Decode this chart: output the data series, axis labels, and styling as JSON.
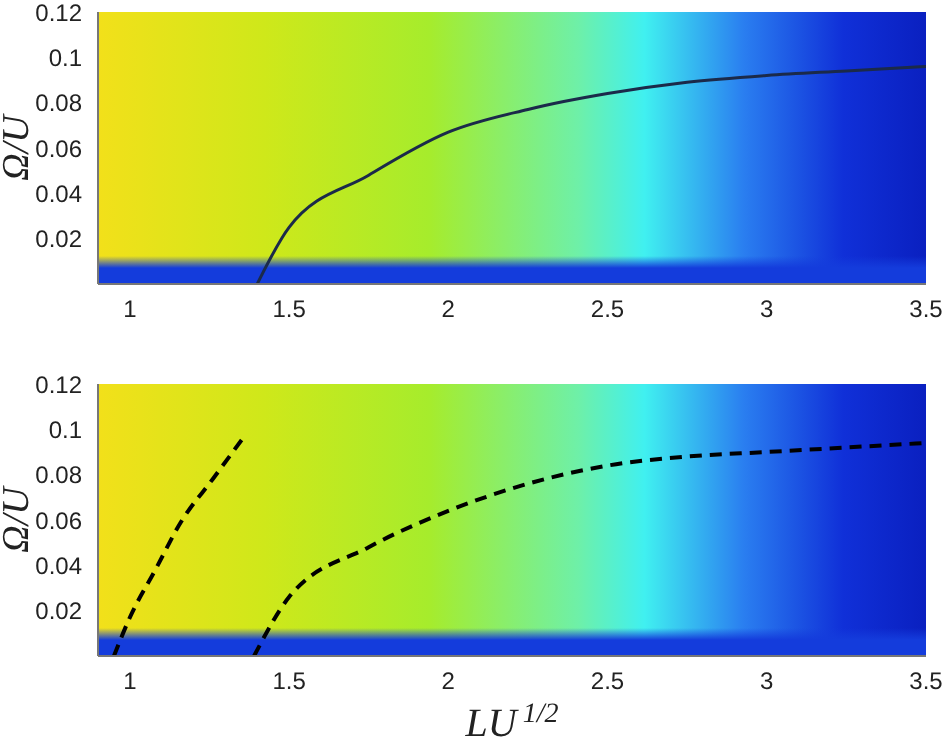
{
  "chart_data": [
    {
      "type": "line",
      "ylabel": "Ω/U",
      "xlim": [
        0.9,
        3.5
      ],
      "ylim": [
        0,
        0.12
      ],
      "xticks": [
        1,
        1.5,
        2,
        2.5,
        3,
        3.5
      ],
      "yticks": [
        0.02,
        0.04,
        0.06,
        0.08,
        0.1,
        0.12
      ],
      "marker": "none",
      "line_style": "solid",
      "series": [
        {
          "color": "#1b2a4a",
          "x": [
            1.4,
            1.5,
            1.75,
            2.0,
            2.25,
            2.5,
            2.75,
            3.0,
            3.25,
            3.5
          ],
          "values": [
            0,
            0.025,
            0.048,
            0.067,
            0.077,
            0.084,
            0.089,
            0.092,
            0.094,
            0.096
          ]
        }
      ]
    },
    {
      "type": "line",
      "ylabel": "Ω/U",
      "xlabel": "LU$^{1/2}$",
      "xlim": [
        0.9,
        3.5
      ],
      "ylim": [
        0,
        0.12
      ],
      "xticks": [
        1,
        1.5,
        2,
        2.5,
        3,
        3.5
      ],
      "yticks": [
        0.02,
        0.04,
        0.06,
        0.08,
        0.1,
        0.12
      ],
      "marker": "none",
      "line_style": "dashed",
      "series": [
        {
          "color": "#000000",
          "x": [
            0.95,
            1.0,
            1.08,
            1.16,
            1.26,
            1.36
          ],
          "values": [
            0,
            0.017,
            0.038,
            0.059,
            0.078,
            0.097
          ]
        },
        {
          "color": "#000000",
          "x": [
            1.39,
            1.5,
            1.75,
            2.0,
            2.25,
            2.5,
            2.75,
            3.0,
            3.25,
            3.5
          ],
          "values": [
            0,
            0.026,
            0.048,
            0.064,
            0.076,
            0.084,
            0.088,
            0.09,
            0.092,
            0.094
          ]
        }
      ]
    }
  ]
}
